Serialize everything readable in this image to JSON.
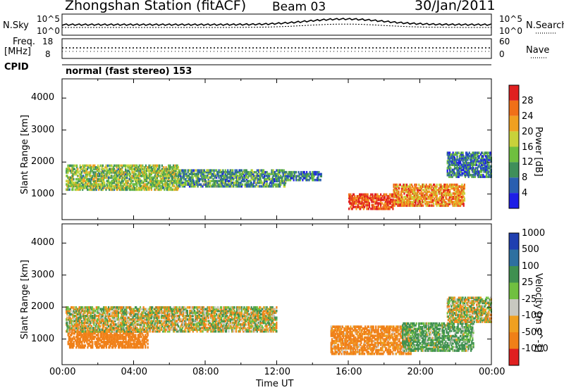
{
  "header": {
    "station": "Zhongshan Station (fitACF)",
    "beam": "Beam 03",
    "date": "30/Jan/2011"
  },
  "top_panels": {
    "nsky_label": "N.Sky",
    "nsky_top": "10^5",
    "nsky_bottom": "10^0",
    "nsearch_top": "10^5",
    "nsearch_bottom": "10^0",
    "nsearch_label": "N.Search",
    "freq_label": "Freq.",
    "freq_unit": "[MHz]",
    "freq_top": "18",
    "freq_bottom": "8",
    "nave_top": "60",
    "nave_bottom": "0",
    "nave_label": "Nave",
    "cpid_label": "CPID",
    "cpid_text": "normal (fast stereo) 153"
  },
  "x_axis": {
    "label": "Time UT",
    "ticks": [
      "00:00",
      "04:00",
      "08:00",
      "12:00",
      "16:00",
      "20:00",
      "00:00"
    ]
  },
  "power_panel": {
    "y_label": "Slant Range [km]",
    "y_ticks": [
      "1000",
      "2000",
      "3000",
      "4000"
    ],
    "colorbar_title": "Power [dB]",
    "colorbar_ticks": [
      "4",
      "8",
      "12",
      "16",
      "20",
      "24",
      "28"
    ],
    "colors": [
      "#1e1ee6",
      "#2a5fb0",
      "#3f8f5a",
      "#6fbf3f",
      "#c8d23a",
      "#f0a020",
      "#f07018",
      "#e02020"
    ]
  },
  "velocity_panel": {
    "y_label": "Slant Range [km]",
    "y_ticks": [
      "1000",
      "2000",
      "3000",
      "4000"
    ],
    "colorbar_title": "Velocity [m s^-1]",
    "colorbar_ticks": [
      "1000",
      "500",
      "100",
      "25",
      "-25",
      "-100",
      "-500",
      "-1000"
    ],
    "colors": [
      "#1f3fb0",
      "#2e70a0",
      "#3f9050",
      "#70c040",
      "#c8c8c0",
      "#f0a020",
      "#f08018",
      "#e02020"
    ]
  },
  "chart_data": {
    "type": "heatmap",
    "title": "Zhongshan Station (fitACF) Beam 03 30/Jan/2011",
    "xlabel": "Time UT",
    "ylabel": "Slant Range [km]",
    "x_range_hours": [
      0,
      24
    ],
    "y_range_km": [
      200,
      4600
    ],
    "panels": [
      {
        "name": "Power [dB]",
        "color_scale": [
          0,
          30
        ],
        "regions": [
          {
            "t": [
              0.2,
              6.5
            ],
            "r": [
              1100,
              1900
            ],
            "value": 14
          },
          {
            "t": [
              6.5,
              12.5
            ],
            "r": [
              1200,
              1750
            ],
            "value": 10
          },
          {
            "t": [
              12.5,
              14.5
            ],
            "r": [
              1400,
              1700
            ],
            "value": 8
          },
          {
            "t": [
              16.0,
              18.5
            ],
            "r": [
              500,
              1000
            ],
            "value": 26
          },
          {
            "t": [
              18.5,
              22.5
            ],
            "r": [
              600,
              1300
            ],
            "value": 22
          },
          {
            "t": [
              21.5,
              24.0
            ],
            "r": [
              1500,
              2300
            ],
            "value": 8
          }
        ]
      },
      {
        "name": "Velocity [m s^-1]",
        "color_scale": [
          -1000,
          1000
        ],
        "regions": [
          {
            "t": [
              0.3,
              4.8
            ],
            "r": [
              700,
              1300
            ],
            "value": -300
          },
          {
            "t": [
              0.2,
              12.0
            ],
            "r": [
              1200,
              2000
            ],
            "value": 0
          },
          {
            "t": [
              15.0,
              19.5
            ],
            "r": [
              500,
              1400
            ],
            "value": -200
          },
          {
            "t": [
              19.0,
              23.0
            ],
            "r": [
              600,
              1500
            ],
            "value": 150
          },
          {
            "t": [
              21.5,
              24.0
            ],
            "r": [
              1500,
              2300
            ],
            "value": 0
          }
        ]
      }
    ]
  }
}
